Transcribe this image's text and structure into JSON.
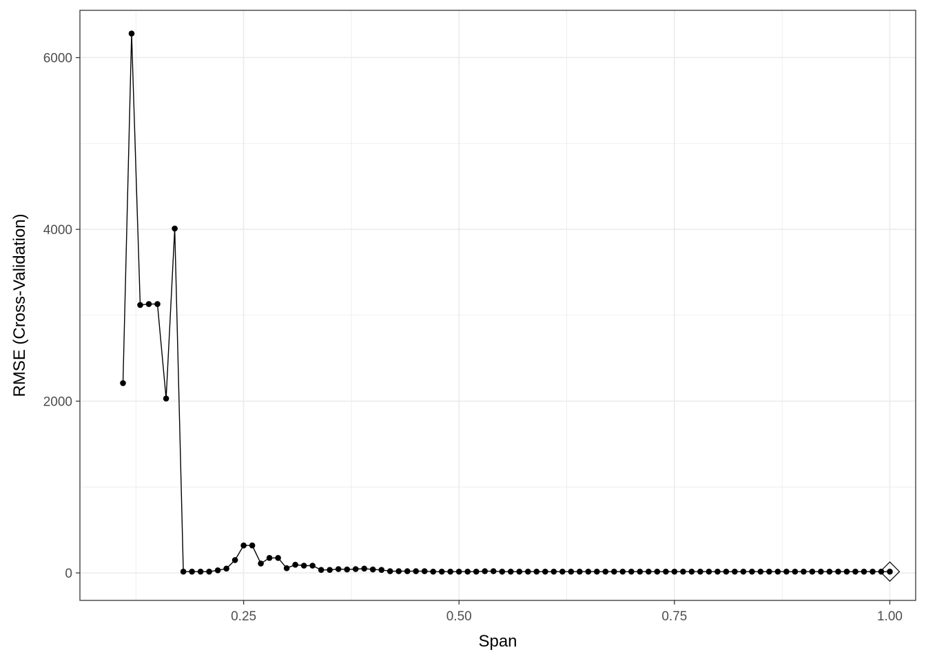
{
  "chart_data": {
    "type": "line",
    "title": "",
    "xlabel": "Span",
    "ylabel": "RMSE (Cross-Validation)",
    "xlim": [
      0.06,
      1.03
    ],
    "ylim": [
      -320,
      6550
    ],
    "x_major_ticks": [
      0.25,
      0.5,
      0.75,
      1.0
    ],
    "x_tick_labels": [
      "0.25",
      "0.50",
      "0.75",
      "1.00"
    ],
    "x_minor_ticks": [
      0.125,
      0.375,
      0.625,
      0.875
    ],
    "y_major_ticks": [
      0,
      2000,
      4000,
      6000
    ],
    "y_tick_labels": [
      "0",
      "2000",
      "4000",
      "6000"
    ],
    "y_minor_ticks": [
      1000,
      3000,
      5000
    ],
    "grid": true,
    "theme": "bw",
    "colors": {
      "line": "#000000",
      "points": "#000000",
      "grid": "#ebebeb",
      "panel_border": "#333333"
    },
    "series": [
      {
        "marker": "circle",
        "x": [
          0.11,
          0.12,
          0.13,
          0.14,
          0.15,
          0.16,
          0.17,
          0.18,
          0.19,
          0.2,
          0.21,
          0.22,
          0.23,
          0.24,
          0.25,
          0.26,
          0.27,
          0.28,
          0.29,
          0.3,
          0.31,
          0.32,
          0.33,
          0.34,
          0.35,
          0.36,
          0.37,
          0.38,
          0.39,
          0.4,
          0.41,
          0.42,
          0.43,
          0.44,
          0.45,
          0.46,
          0.47,
          0.48,
          0.49,
          0.5,
          0.51,
          0.52,
          0.53,
          0.54,
          0.55,
          0.56,
          0.57,
          0.58,
          0.59,
          0.6,
          0.61,
          0.62,
          0.63,
          0.64,
          0.65,
          0.66,
          0.67,
          0.68,
          0.69,
          0.7,
          0.71,
          0.72,
          0.73,
          0.74,
          0.75,
          0.76,
          0.77,
          0.78,
          0.79,
          0.8,
          0.81,
          0.82,
          0.83,
          0.84,
          0.85,
          0.86,
          0.87,
          0.88,
          0.89,
          0.9,
          0.91,
          0.92,
          0.93,
          0.94,
          0.95,
          0.96,
          0.97,
          0.98,
          0.99,
          1.0
        ],
        "y": [
          2210,
          6280,
          3120,
          3130,
          3130,
          2030,
          4010,
          15,
          15,
          15,
          15,
          30,
          50,
          150,
          320,
          320,
          110,
          175,
          175,
          55,
          95,
          85,
          85,
          35,
          35,
          45,
          40,
          45,
          50,
          40,
          35,
          20,
          20,
          20,
          20,
          20,
          15,
          15,
          15,
          15,
          15,
          15,
          20,
          20,
          15,
          15,
          15,
          15,
          15,
          15,
          15,
          15,
          15,
          15,
          15,
          15,
          15,
          15,
          15,
          15,
          15,
          15,
          15,
          15,
          15,
          15,
          15,
          15,
          15,
          15,
          15,
          15,
          15,
          15,
          15,
          15,
          15,
          15,
          15,
          15,
          15,
          15,
          15,
          15,
          15,
          15,
          15,
          15,
          15,
          15
        ]
      }
    ],
    "highlight": {
      "marker": "diamond",
      "x": 1.0,
      "y": 15
    }
  }
}
